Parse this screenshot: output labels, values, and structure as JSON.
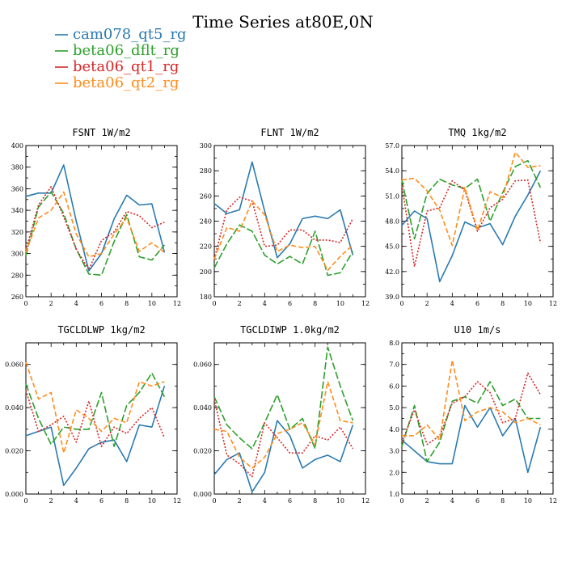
{
  "title": "Time Series at80E,0N",
  "colors": {
    "cam078_qt5_rg": "#2a7ab0",
    "beta06_dflt_rg": "#2ca02c",
    "beta06_qt1_rg": "#d62728",
    "beta06_qt2_rg": "#ff8c1a"
  },
  "legend": [
    {
      "name": "cam078_qt5_rg",
      "color": "#2a7ab0",
      "dash": "solid"
    },
    {
      "name": "beta06_dflt_rg",
      "color": "#2ca02c",
      "dash": "long-dash"
    },
    {
      "name": "beta06_qt1_rg",
      "color": "#d62728",
      "dash": "dotted"
    },
    {
      "name": "beta06_qt2_rg",
      "color": "#ff8c1a",
      "dash": "dash"
    }
  ],
  "chart_data": [
    {
      "type": "line",
      "title": "FSNT  1W/m2",
      "x": [
        0,
        1,
        2,
        3,
        4,
        5,
        6,
        7,
        8,
        9,
        10,
        11
      ],
      "xlim": [
        0,
        12
      ],
      "xticks": [
        "0",
        "2",
        "4",
        "6",
        "8",
        "10",
        "12"
      ],
      "ylim": [
        260,
        400
      ],
      "yticks": [
        "260",
        "280",
        "300",
        "320",
        "340",
        "360",
        "380",
        "400"
      ],
      "series": [
        {
          "name": "cam078_qt5_rg",
          "values": [
            353,
            356,
            356,
            382,
            330,
            284,
            300,
            332,
            354,
            345,
            346,
            301
          ]
        },
        {
          "name": "beta06_dflt_rg",
          "values": [
            298,
            343,
            357,
            337,
            304,
            281,
            280,
            311,
            336,
            297,
            294,
            308
          ]
        },
        {
          "name": "beta06_qt1_rg",
          "values": [
            303,
            345,
            362,
            334,
            304,
            285,
            312,
            320,
            339,
            335,
            324,
            329
          ]
        },
        {
          "name": "beta06_qt2_rg",
          "values": [
            301,
            333,
            340,
            357,
            318,
            297,
            300,
            318,
            333,
            302,
            310,
            301
          ]
        }
      ]
    },
    {
      "type": "line",
      "title": "FLNT  1W/m2",
      "x": [
        0,
        1,
        2,
        3,
        4,
        5,
        6,
        7,
        8,
        9,
        10,
        11
      ],
      "xlim": [
        0,
        12
      ],
      "xticks": [
        "0",
        "2",
        "4",
        "6",
        "8",
        "10",
        "12"
      ],
      "ylim": [
        180,
        300
      ],
      "yticks": [
        "180",
        "200",
        "220",
        "240",
        "260",
        "280",
        "300"
      ],
      "series": [
        {
          "name": "cam078_qt5_rg",
          "values": [
            254,
            246,
            249,
            287,
            248,
            211,
            222,
            242,
            244,
            242,
            249,
            213
          ]
        },
        {
          "name": "beta06_dflt_rg",
          "values": [
            203,
            222,
            237,
            232,
            213,
            206,
            212,
            206,
            232,
            197,
            199,
            216
          ]
        },
        {
          "name": "beta06_qt1_rg",
          "values": [
            210,
            249,
            259,
            256,
            220,
            221,
            233,
            233,
            225,
            225,
            223,
            242
          ]
        },
        {
          "name": "beta06_qt2_rg",
          "values": [
            210,
            235,
            232,
            256,
            245,
            216,
            221,
            219,
            220,
            201,
            212,
            221
          ]
        }
      ]
    },
    {
      "type": "line",
      "title": "TMQ  1kg/m2",
      "x": [
        0,
        1,
        2,
        3,
        4,
        5,
        6,
        7,
        8,
        9,
        10,
        11
      ],
      "xlim": [
        0,
        12
      ],
      "xticks": [
        "0",
        "2",
        "4",
        "6",
        "8",
        "10",
        "12"
      ],
      "ylim": [
        39,
        57
      ],
      "yticks": [
        "39.0",
        "42.0",
        "45.0",
        "48.0",
        "51.0",
        "54.0",
        "57.0"
      ],
      "series": [
        {
          "name": "cam078_qt5_rg",
          "values": [
            47.5,
            49.2,
            48.3,
            40.8,
            43.9,
            47.9,
            47.2,
            47.7,
            45.2,
            48.6,
            51.1,
            54.0
          ]
        },
        {
          "name": "beta06_dflt_rg",
          "values": [
            52.9,
            45.9,
            51.3,
            53.0,
            52.3,
            51.9,
            53.0,
            48.0,
            51.4,
            54.5,
            55.2,
            52.0
          ]
        },
        {
          "name": "beta06_qt1_rg",
          "values": [
            52.3,
            42.6,
            49.2,
            49.6,
            52.8,
            51.7,
            46.8,
            49.6,
            50.6,
            52.8,
            52.9,
            45.4
          ]
        },
        {
          "name": "beta06_qt2_rg",
          "values": [
            52.9,
            53.1,
            51.6,
            49.3,
            45.1,
            52.0,
            46.9,
            51.5,
            50.8,
            56.2,
            54.4,
            54.6
          ]
        }
      ]
    },
    {
      "type": "line",
      "title": "TGCLDLWP  1kg/m2",
      "x": [
        0,
        1,
        2,
        3,
        4,
        5,
        6,
        7,
        8,
        9,
        10,
        11
      ],
      "xlim": [
        0,
        12
      ],
      "xticks": [
        "0",
        "2",
        "4",
        "6",
        "8",
        "10",
        "12"
      ],
      "ylim": [
        0.0,
        0.07
      ],
      "yticks": [
        "0.000",
        "0.020",
        "0.040",
        "0.060"
      ],
      "ytick_values": [
        0.0,
        0.02,
        0.04,
        0.06
      ],
      "series": [
        {
          "name": "cam078_qt5_rg",
          "values": [
            0.027,
            0.029,
            0.031,
            0.004,
            0.012,
            0.021,
            0.024,
            0.025,
            0.015,
            0.032,
            0.031,
            0.05
          ]
        },
        {
          "name": "beta06_dflt_rg",
          "values": [
            0.051,
            0.035,
            0.023,
            0.031,
            0.03,
            0.03,
            0.047,
            0.022,
            0.041,
            0.047,
            0.056,
            0.045
          ]
        },
        {
          "name": "beta06_qt1_rg",
          "values": [
            0.048,
            0.029,
            0.032,
            0.036,
            0.024,
            0.043,
            0.022,
            0.031,
            0.028,
            0.035,
            0.04,
            0.026
          ]
        },
        {
          "name": "beta06_qt2_rg",
          "values": [
            0.061,
            0.044,
            0.047,
            0.019,
            0.039,
            0.035,
            0.029,
            0.035,
            0.033,
            0.052,
            0.05,
            0.052
          ]
        }
      ]
    },
    {
      "type": "line",
      "title": "TGCLDIWP  1.0kg/m2",
      "x": [
        0,
        1,
        2,
        3,
        4,
        5,
        6,
        7,
        8,
        9,
        10,
        11
      ],
      "xlim": [
        0,
        12
      ],
      "xticks": [
        "0",
        "2",
        "4",
        "6",
        "8",
        "10",
        "12"
      ],
      "ylim": [
        0.0,
        0.07
      ],
      "yticks": [
        "0.000",
        "0.020",
        "0.040",
        "0.060"
      ],
      "ytick_values": [
        0.0,
        0.02,
        0.04,
        0.06
      ],
      "series": [
        {
          "name": "cam078_qt5_rg",
          "values": [
            0.009,
            0.016,
            0.019,
            0.001,
            0.01,
            0.034,
            0.027,
            0.012,
            0.016,
            0.018,
            0.015,
            0.032
          ]
        },
        {
          "name": "beta06_dflt_rg",
          "values": [
            0.045,
            0.032,
            0.026,
            0.021,
            0.033,
            0.046,
            0.03,
            0.035,
            0.021,
            0.068,
            0.05,
            0.034
          ]
        },
        {
          "name": "beta06_qt1_rg",
          "values": [
            0.044,
            0.018,
            0.014,
            0.008,
            0.033,
            0.026,
            0.019,
            0.019,
            0.027,
            0.025,
            0.031,
            0.021
          ]
        },
        {
          "name": "beta06_qt2_rg",
          "values": [
            0.03,
            0.029,
            0.017,
            0.012,
            0.017,
            0.028,
            0.03,
            0.033,
            0.023,
            0.052,
            0.034,
            0.033
          ]
        }
      ]
    },
    {
      "type": "line",
      "title": "U10  1m/s",
      "x": [
        0,
        1,
        2,
        3,
        4,
        5,
        6,
        7,
        8,
        9,
        10,
        11
      ],
      "xlim": [
        0,
        12
      ],
      "xticks": [
        "0",
        "2",
        "4",
        "6",
        "8",
        "10",
        "12"
      ],
      "ylim": [
        1.0,
        8.0
      ],
      "yticks": [
        "1.0",
        "2.0",
        "3.0",
        "4.0",
        "5.0",
        "6.0",
        "7.0",
        "8.0"
      ],
      "series": [
        {
          "name": "cam078_qt5_rg",
          "values": [
            3.5,
            3.0,
            2.5,
            2.4,
            2.4,
            5.1,
            4.1,
            5.0,
            3.7,
            4.5,
            2.0,
            4.1
          ]
        },
        {
          "name": "beta06_dflt_rg",
          "values": [
            3.2,
            5.1,
            2.5,
            3.4,
            5.3,
            5.5,
            5.2,
            6.2,
            5.1,
            5.4,
            4.5,
            4.5
          ]
        },
        {
          "name": "beta06_qt1_rg",
          "values": [
            3.4,
            4.9,
            3.3,
            3.7,
            5.2,
            5.5,
            6.2,
            5.7,
            4.3,
            4.5,
            6.6,
            5.6
          ]
        },
        {
          "name": "beta06_qt2_rg",
          "values": [
            3.7,
            3.7,
            4.2,
            3.5,
            7.2,
            4.4,
            4.8,
            5.0,
            4.8,
            4.3,
            4.5,
            4.2
          ]
        }
      ]
    }
  ]
}
